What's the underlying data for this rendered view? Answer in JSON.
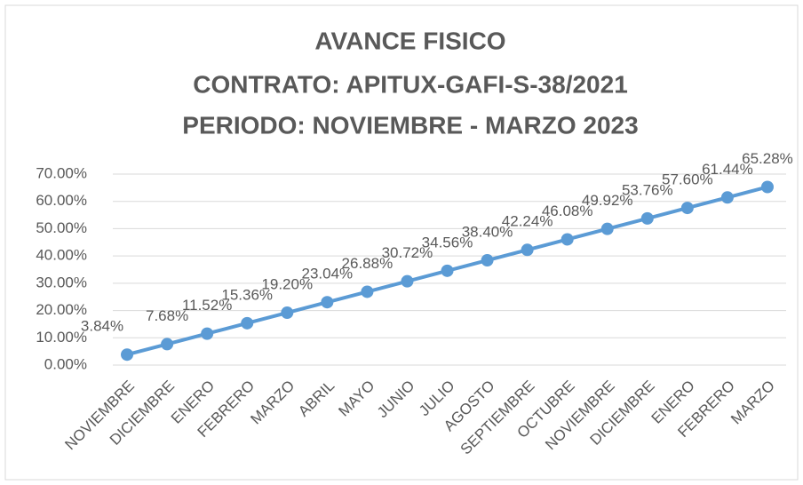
{
  "chart_data": {
    "type": "line",
    "title": [
      "AVANCE FISICO",
      "CONTRATO: APITUX-GAFI-S-38/2021",
      "PERIODO: NOVIEMBRE - MARZO 2023"
    ],
    "categories": [
      "NOVIEMBRE",
      "DICIEMBRE",
      "ENERO",
      "FEBRERO",
      "MARZO",
      "ABRIL",
      "MAYO",
      "JUNIO",
      "JULIO",
      "AGOSTO",
      "SEPTIEMBRE",
      "OCTUBRE",
      "NOVIEMBRE",
      "DICIEMBRE",
      "ENERO",
      "FEBRERO",
      "MARZO"
    ],
    "values": [
      3.84,
      7.68,
      11.52,
      15.36,
      19.2,
      23.04,
      26.88,
      30.72,
      34.56,
      38.4,
      42.24,
      46.08,
      49.92,
      53.76,
      57.6,
      61.44,
      65.28
    ],
    "value_labels": [
      "3.84%",
      "7.68%",
      "11.52%",
      "15.36%",
      "19.20%",
      "23.04%",
      "26.88%",
      "30.72%",
      "34.56%",
      "38.40%",
      "42.24%",
      "46.08%",
      "49.92%",
      "53.76%",
      "57.60%",
      "61.44%",
      "65.28%"
    ],
    "color": "#5b9bd5",
    "ylim": [
      0,
      70
    ],
    "yticks": [
      {
        "value": 0,
        "label": "0.00%"
      },
      {
        "value": 10,
        "label": "10.00%"
      },
      {
        "value": 20,
        "label": "20.00%"
      },
      {
        "value": 30,
        "label": "30.00%"
      },
      {
        "value": 40,
        "label": "40.00%"
      },
      {
        "value": 50,
        "label": "50.00%"
      },
      {
        "value": 60,
        "label": "60.00%"
      },
      {
        "value": 70,
        "label": "70.00%"
      }
    ],
    "grid": true
  }
}
